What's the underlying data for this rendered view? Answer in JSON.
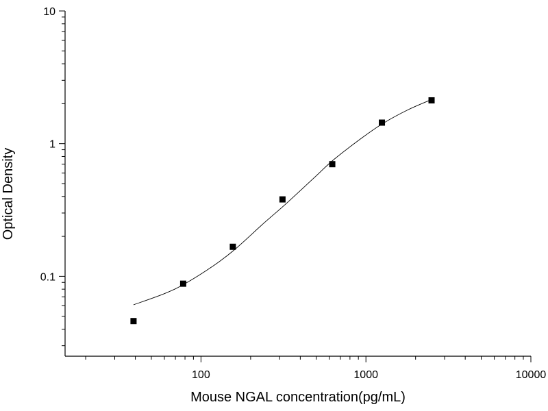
{
  "chart_data": {
    "type": "scatter",
    "xlabel": "Mouse NGAL concentration(pg/mL)",
    "ylabel": "Optical Density",
    "xscale": "log",
    "yscale": "log",
    "xlim": [
      15,
      10000
    ],
    "ylim": [
      0.025,
      10
    ],
    "x_ticks": [
      {
        "value": 100,
        "label": "100"
      },
      {
        "value": 1000,
        "label": "1000"
      },
      {
        "value": 10000,
        "label": "10000"
      }
    ],
    "y_ticks": [
      {
        "value": 0.1,
        "label": "0.1"
      },
      {
        "value": 1,
        "label": "1"
      },
      {
        "value": 10,
        "label": "10"
      }
    ],
    "grid": false,
    "series": [
      {
        "marker": "square",
        "color": "#000000",
        "points": [
          {
            "x": 39,
            "y": 0.046
          },
          {
            "x": 78,
            "y": 0.088
          },
          {
            "x": 156,
            "y": 0.167
          },
          {
            "x": 312,
            "y": 0.38
          },
          {
            "x": 625,
            "y": 0.7
          },
          {
            "x": 1250,
            "y": 1.44
          },
          {
            "x": 2500,
            "y": 2.12
          }
        ]
      }
    ],
    "fit_curve": {
      "color": "#000000",
      "points": [
        {
          "x": 39,
          "y": 0.061
        },
        {
          "x": 60,
          "y": 0.074
        },
        {
          "x": 80,
          "y": 0.088
        },
        {
          "x": 120,
          "y": 0.121
        },
        {
          "x": 160,
          "y": 0.159
        },
        {
          "x": 240,
          "y": 0.251
        },
        {
          "x": 320,
          "y": 0.343
        },
        {
          "x": 480,
          "y": 0.546
        },
        {
          "x": 640,
          "y": 0.76
        },
        {
          "x": 960,
          "y": 1.12
        },
        {
          "x": 1280,
          "y": 1.43
        },
        {
          "x": 1800,
          "y": 1.8
        },
        {
          "x": 2500,
          "y": 2.15
        }
      ]
    }
  }
}
